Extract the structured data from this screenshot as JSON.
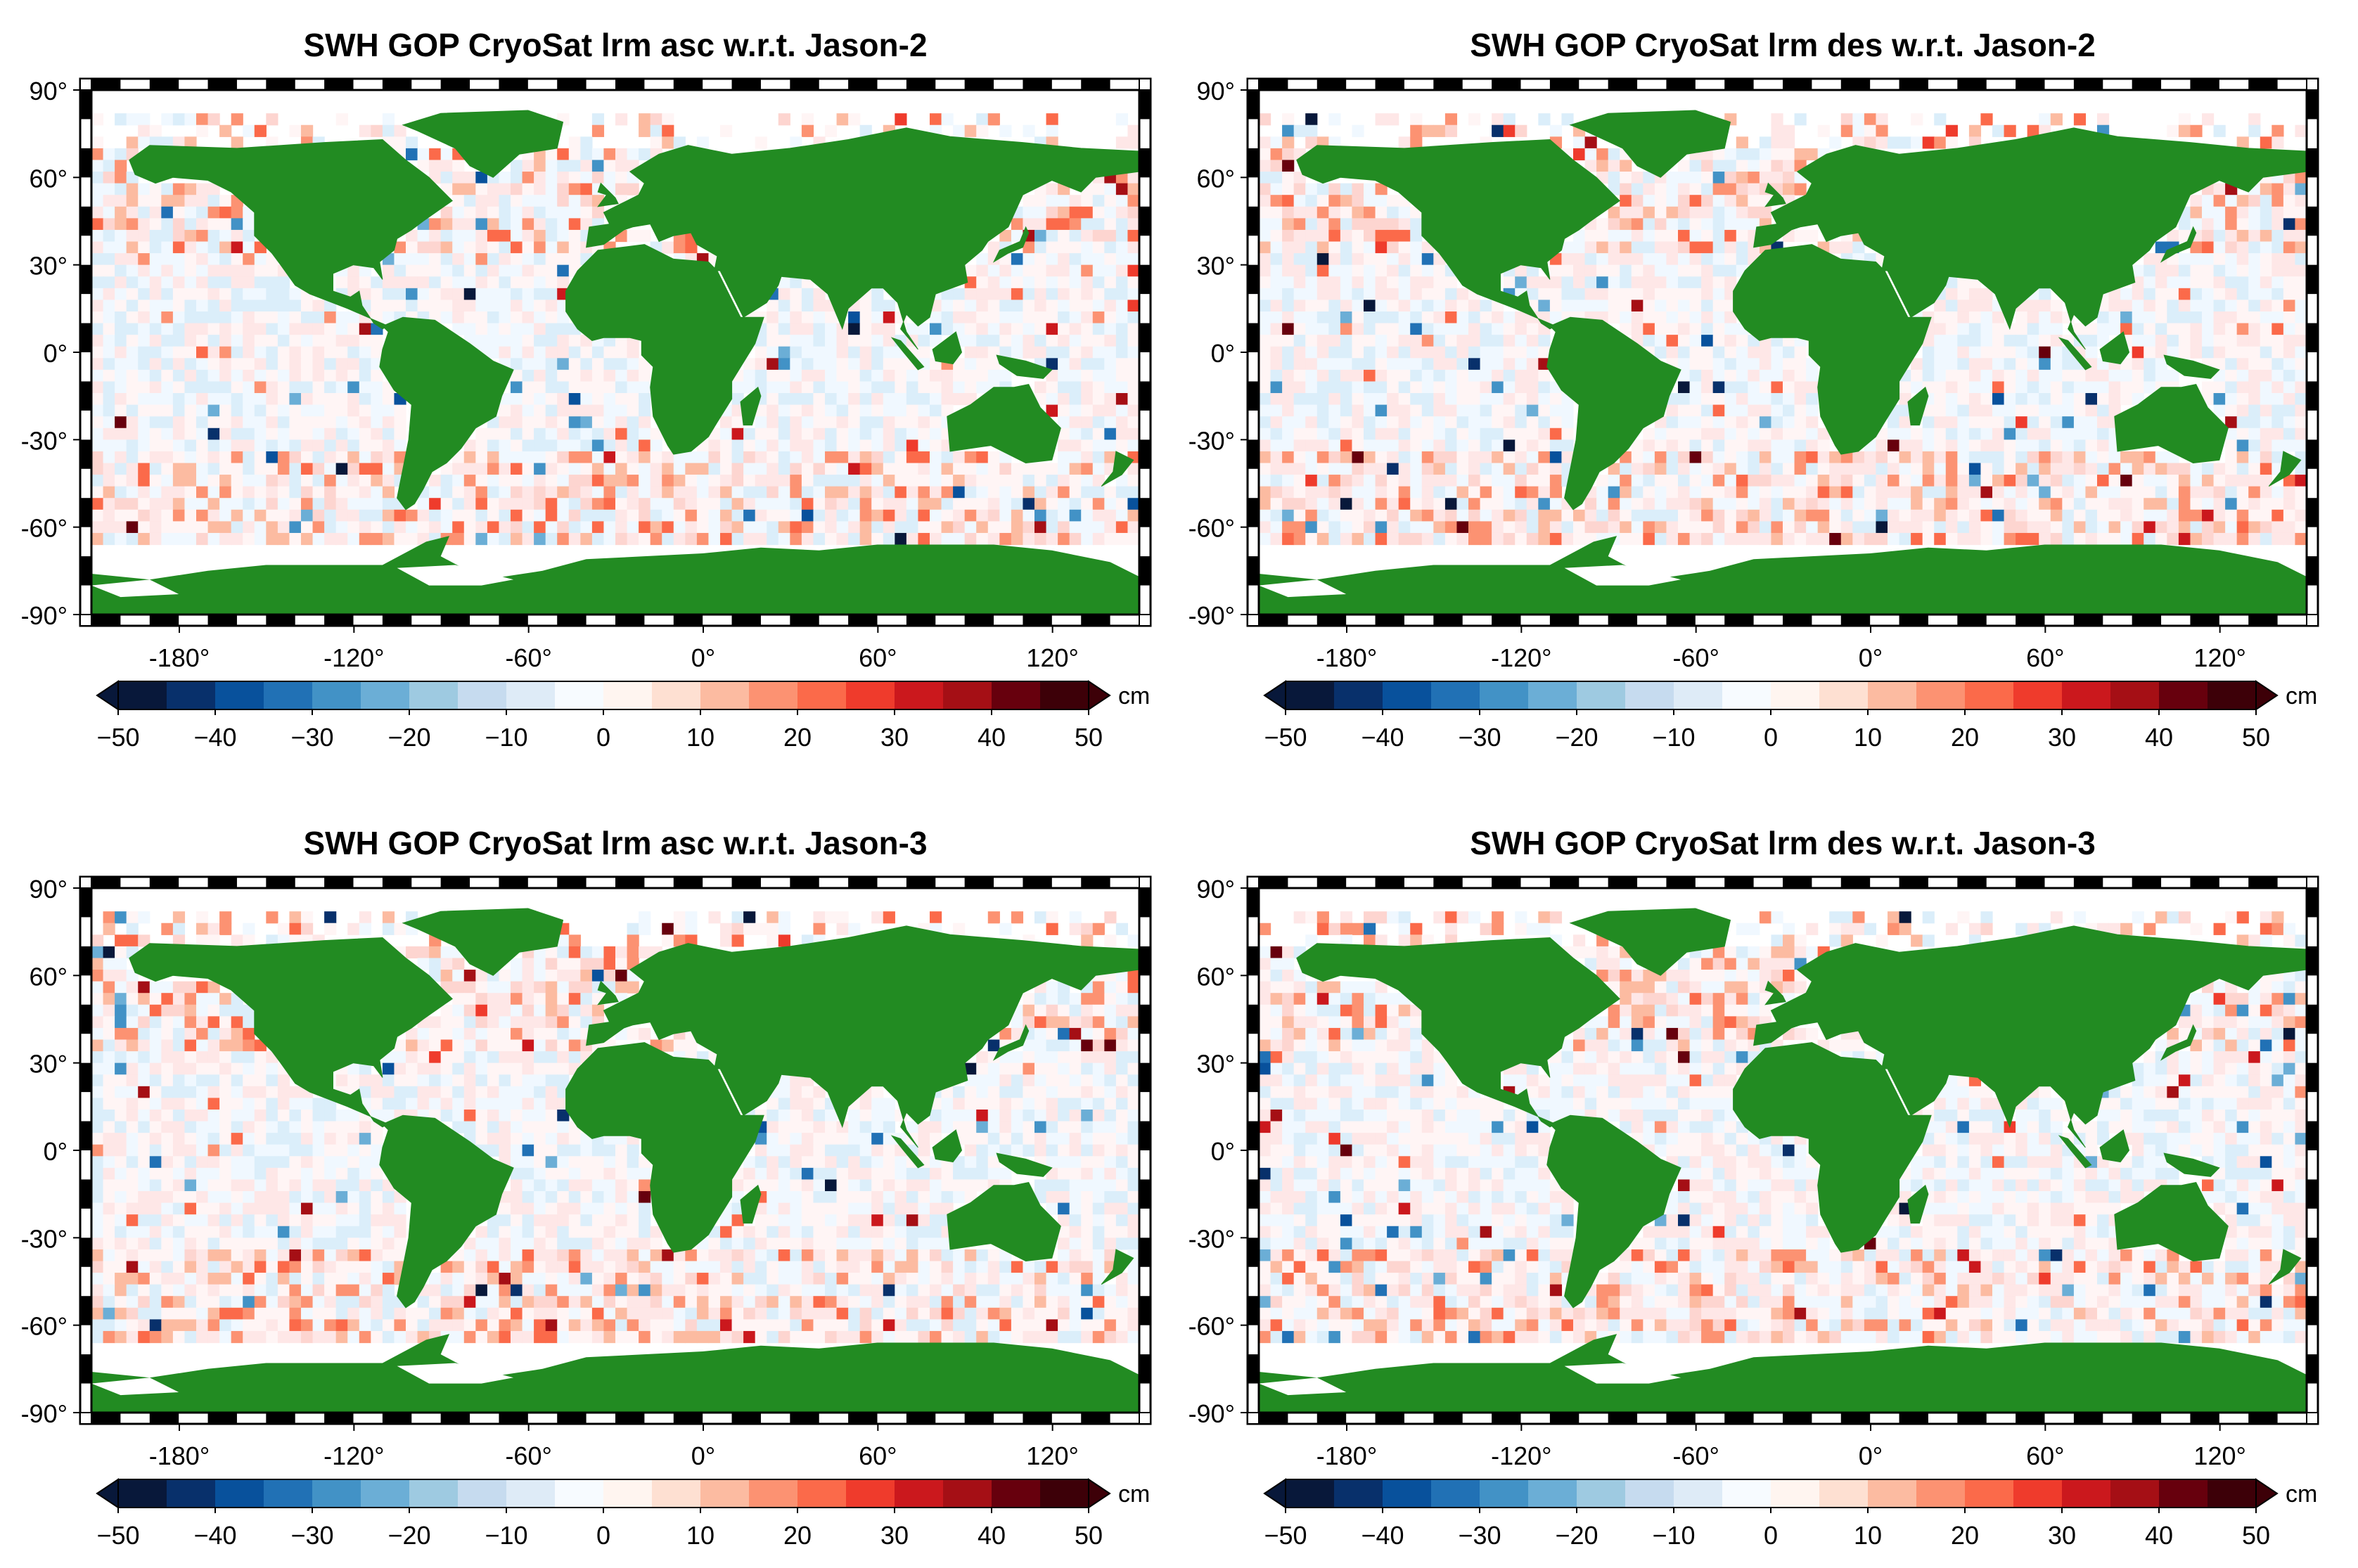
{
  "chart_data": [
    {
      "type": "heatmap",
      "title": "SWH GOP CryoSat lrm asc w.r.t. Jason-2",
      "seed": 11,
      "xlabel": "",
      "ylabel": "",
      "x_ticks": [
        "-180°",
        "-120°",
        "-60°",
        "0°",
        "60°",
        "120°"
      ],
      "y_ticks": [
        "90°",
        "60°",
        "30°",
        "0°",
        "-30°",
        "-60°",
        "-90°"
      ],
      "xlim": [
        -180,
        180
      ],
      "ylim": [
        -90,
        90
      ],
      "colorbar": {
        "ticks": [
          "-50",
          "-40",
          "-30",
          "-20",
          "-10",
          "0",
          "10",
          "20",
          "30",
          "40",
          "50"
        ],
        "unit": "cm",
        "range": [
          -50,
          50
        ]
      }
    },
    {
      "type": "heatmap",
      "title": "SWH GOP CryoSat lrm des w.r.t. Jason-2",
      "seed": 23,
      "xlabel": "",
      "ylabel": "",
      "x_ticks": [
        "-180°",
        "-120°",
        "-60°",
        "0°",
        "60°",
        "120°"
      ],
      "y_ticks": [
        "90°",
        "60°",
        "30°",
        "0°",
        "-30°",
        "-60°",
        "-90°"
      ],
      "xlim": [
        -180,
        180
      ],
      "ylim": [
        -90,
        90
      ],
      "colorbar": {
        "ticks": [
          "-50",
          "-40",
          "-30",
          "-20",
          "-10",
          "0",
          "10",
          "20",
          "30",
          "40",
          "50"
        ],
        "unit": "cm",
        "range": [
          -50,
          50
        ]
      }
    },
    {
      "type": "heatmap",
      "title": "SWH GOP CryoSat lrm asc w.r.t. Jason-3",
      "seed": 37,
      "xlabel": "",
      "ylabel": "",
      "x_ticks": [
        "-180°",
        "-120°",
        "-60°",
        "0°",
        "60°",
        "120°"
      ],
      "y_ticks": [
        "90°",
        "60°",
        "30°",
        "0°",
        "-30°",
        "-60°",
        "-90°"
      ],
      "xlim": [
        -180,
        180
      ],
      "ylim": [
        -90,
        90
      ],
      "colorbar": {
        "ticks": [
          "-50",
          "-40",
          "-30",
          "-20",
          "-10",
          "0",
          "10",
          "20",
          "30",
          "40",
          "50"
        ],
        "unit": "cm",
        "range": [
          -50,
          50
        ]
      }
    },
    {
      "type": "heatmap",
      "title": "SWH GOP CryoSat lrm des w.r.t. Jason-3",
      "seed": 53,
      "xlabel": "",
      "ylabel": "",
      "x_ticks": [
        "-180°",
        "-120°",
        "-60°",
        "0°",
        "60°",
        "120°"
      ],
      "y_ticks": [
        "90°",
        "60°",
        "30°",
        "0°",
        "-30°",
        "-60°",
        "-90°"
      ],
      "xlim": [
        -180,
        180
      ],
      "ylim": [
        -90,
        90
      ],
      "colorbar": {
        "ticks": [
          "-50",
          "-40",
          "-30",
          "-20",
          "-10",
          "0",
          "10",
          "20",
          "30",
          "40",
          "50"
        ],
        "unit": "cm",
        "range": [
          -50,
          50
        ]
      }
    }
  ],
  "colors": {
    "land": "#228b22",
    "ice": "#ffffff",
    "frame": "#000000",
    "colorbar": [
      "#08183a",
      "#08306b",
      "#08519c",
      "#2171b5",
      "#4292c6",
      "#6baed6",
      "#9ecae1",
      "#c6dbef",
      "#deebf7",
      "#f7fbff",
      "#fff5f0",
      "#fee0d2",
      "#fcbba1",
      "#fc9272",
      "#fb6a4a",
      "#ef3b2c",
      "#cb181d",
      "#a50f15",
      "#67000d",
      "#3d0008"
    ],
    "diverging_neg": [
      "#f0f8ff",
      "#dbeefa",
      "#c6dbef",
      "#9ecae1",
      "#6baed6",
      "#4292c6",
      "#2171b5",
      "#08519c",
      "#08306b",
      "#08183a"
    ],
    "diverging_pos": [
      "#fff5f5",
      "#fee7e7",
      "#fdd5d0",
      "#fcbba1",
      "#fc9272",
      "#fb6a4a",
      "#ef3b2c",
      "#cb181d",
      "#a50f15",
      "#67000d"
    ]
  }
}
